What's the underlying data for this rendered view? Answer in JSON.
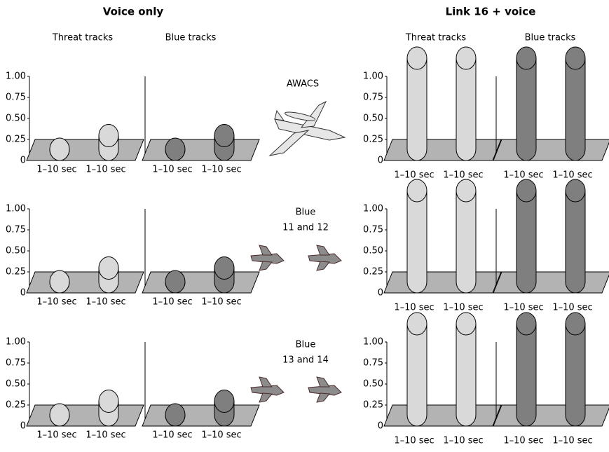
{
  "group_titles": [
    "Voice only",
    "Link 16 + voice"
  ],
  "column_titles": [
    "Threat tracks",
    "Blue tracks",
    "Threat tracks",
    "Blue tracks"
  ],
  "row_labels": [
    [
      "AWACS"
    ],
    [
      "Blue",
      "11 and 12"
    ],
    [
      "Blue",
      "13 and 14"
    ]
  ],
  "chart_data": [
    {
      "type": "cylinder",
      "categories": [
        "1–10 sec",
        "1–10 sec"
      ],
      "values": [
        0,
        0.15
      ],
      "color": "#d9d9d9",
      "ylim": [
        0,
        1
      ],
      "yticks": [
        0,
        0.25,
        {
          "value": 0.5,
          "label": "0.50"
        },
        0.75,
        {
          "value": 1,
          "label": "1.00"
        }
      ]
    },
    {
      "type": "cylinder",
      "categories": [
        "1–10 sec",
        "1–10 sec"
      ],
      "values": [
        0,
        0.15
      ],
      "color": "#7f7f7f",
      "ylim": [
        0,
        1
      ]
    },
    {
      "type": "cylinder",
      "categories": [
        "1–10 sec",
        "1–10 sec"
      ],
      "values": [
        1,
        1
      ],
      "color": "#d9d9d9",
      "ylim": [
        0,
        1
      ],
      "yticks": [
        0,
        0.25,
        {
          "value": 0.5,
          "label": "0.50"
        },
        0.75,
        {
          "value": 1,
          "label": "1.00"
        }
      ]
    },
    {
      "type": "cylinder",
      "categories": [
        "1–10 sec",
        "1–10 sec"
      ],
      "values": [
        1,
        1
      ],
      "color": "#7f7f7f",
      "ylim": [
        0,
        1
      ]
    },
    {
      "type": "cylinder",
      "categories": [
        "1–10 sec",
        "1–10 sec"
      ],
      "values": [
        0,
        0.15
      ],
      "color": "#d9d9d9",
      "ylim": [
        0,
        1
      ],
      "yticks": [
        0,
        0.25,
        {
          "value": 0.5,
          "label": "0.50"
        },
        0.75,
        {
          "value": 1,
          "label": "1.00"
        }
      ]
    },
    {
      "type": "cylinder",
      "categories": [
        "1–10 sec",
        "1–10 sec"
      ],
      "values": [
        0,
        0.15
      ],
      "color": "#7f7f7f",
      "ylim": [
        0,
        1
      ]
    },
    {
      "type": "cylinder",
      "categories": [
        "1–10 sec",
        "1–10 sec"
      ],
      "values": [
        1,
        1
      ],
      "color": "#d9d9d9",
      "ylim": [
        0,
        1
      ],
      "yticks": [
        0,
        0.25,
        {
          "value": 0.5,
          "label": "0.50"
        },
        0.75,
        {
          "value": 1,
          "label": "1.00"
        }
      ]
    },
    {
      "type": "cylinder",
      "categories": [
        "1–10 sec",
        "1–10 sec"
      ],
      "values": [
        1,
        1
      ],
      "color": "#7f7f7f",
      "ylim": [
        0,
        1
      ]
    },
    {
      "type": "cylinder",
      "categories": [
        "1–10 sec",
        "1–10 sec"
      ],
      "values": [
        0,
        0.15
      ],
      "color": "#d9d9d9",
      "ylim": [
        0,
        1
      ],
      "yticks": [
        0,
        0.25,
        {
          "value": 0.5,
          "label": "0.50"
        },
        0.75,
        {
          "value": 1,
          "label": "1.00"
        }
      ]
    },
    {
      "type": "cylinder",
      "categories": [
        "1–10 sec",
        "1–10 sec"
      ],
      "values": [
        0,
        0.15
      ],
      "color": "#7f7f7f",
      "ylim": [
        0,
        1
      ]
    },
    {
      "type": "cylinder",
      "categories": [
        "1–10 sec",
        "1–10 sec"
      ],
      "values": [
        1,
        1
      ],
      "color": "#d9d9d9",
      "ylim": [
        0,
        1
      ],
      "yticks": [
        0,
        0.25,
        {
          "value": 0.5,
          "label": "0.50"
        },
        0.75,
        {
          "value": 1,
          "label": "1.00"
        }
      ]
    },
    {
      "type": "cylinder",
      "categories": [
        "1–10 sec",
        "1–10 sec"
      ],
      "values": [
        1,
        1
      ],
      "color": "#7f7f7f",
      "ylim": [
        0,
        1
      ]
    }
  ]
}
